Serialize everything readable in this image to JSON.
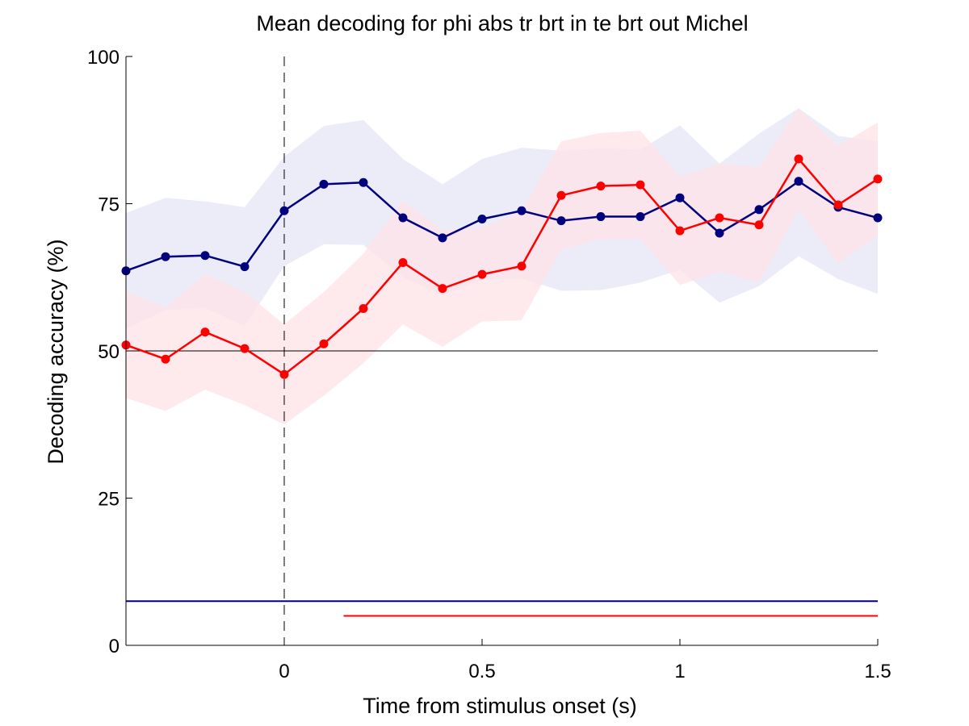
{
  "chart_data": {
    "type": "line",
    "title": "Mean decoding for phi abs tr brt in te brt out  Michel",
    "xlabel": "Time from stimulus onset (s)",
    "ylabel": "Decoding accuracy (%)",
    "xlim": [
      -0.4,
      1.5
    ],
    "ylim": [
      0,
      100
    ],
    "xticks": [
      0,
      0.5,
      1,
      1.5
    ],
    "xtick_labels": [
      "0",
      "0.5",
      "1",
      "1.5"
    ],
    "yticks": [
      0,
      25,
      50,
      75,
      100
    ],
    "ytick_labels": [
      "0",
      "25",
      "50",
      "75",
      "100"
    ],
    "grid": false,
    "chance_level": 50,
    "stimulus_onset_x": 0,
    "x": [
      -0.4,
      -0.3,
      -0.2,
      -0.1,
      0,
      0.1,
      0.2,
      0.3,
      0.4,
      0.5,
      0.6,
      0.7,
      0.8,
      0.9,
      1.0,
      1.1,
      1.2,
      1.3,
      1.4,
      1.5
    ],
    "series": [
      {
        "color": "#00007f",
        "band_color": "#e6e6f7",
        "values": [
          63.6,
          66.0,
          66.2,
          64.3,
          73.8,
          78.3,
          78.6,
          72.6,
          69.2,
          72.4,
          73.8,
          72.1,
          72.8,
          72.8,
          76.0,
          70.0,
          74.0,
          78.8,
          74.4,
          72.6
        ],
        "upper": [
          73.4,
          76.0,
          75.4,
          74.4,
          83.0,
          88.2,
          89.2,
          82.6,
          78.3,
          82.6,
          84.5,
          84.0,
          84.4,
          84.2,
          88.3,
          81.8,
          86.9,
          91.2,
          86.5,
          85.6
        ],
        "lower": [
          53.8,
          56.9,
          57.3,
          54.2,
          64.4,
          68.1,
          68.0,
          62.5,
          59.5,
          62.1,
          62.3,
          60.2,
          60.3,
          61.6,
          63.8,
          58.2,
          61.0,
          66.1,
          62.2,
          59.7
        ],
        "significance_x": [
          -0.4,
          1.5
        ],
        "significance_y": 7.5
      },
      {
        "color": "#ff0000",
        "band_color": "#fde3e6",
        "values": [
          51.0,
          48.6,
          53.2,
          50.4,
          46.0,
          51.2,
          57.2,
          65.0,
          60.6,
          63.0,
          64.4,
          76.4,
          78.0,
          78.2,
          70.4,
          72.6,
          71.4,
          82.6,
          74.8,
          79.2
        ],
        "upper": [
          60.0,
          57.4,
          63.0,
          60.0,
          54.5,
          60.0,
          66.5,
          75.5,
          70.5,
          71.0,
          73.6,
          85.6,
          87.0,
          87.4,
          79.6,
          81.8,
          81.2,
          91.2,
          84.8,
          88.8
        ],
        "lower": [
          42.0,
          39.8,
          43.4,
          40.8,
          37.5,
          42.4,
          47.9,
          54.5,
          50.7,
          55.0,
          55.2,
          67.2,
          69.0,
          69.0,
          61.2,
          63.4,
          61.6,
          74.0,
          64.8,
          69.6
        ],
        "significance_x": [
          0.15,
          1.5
        ],
        "significance_y": 5.0
      }
    ]
  }
}
